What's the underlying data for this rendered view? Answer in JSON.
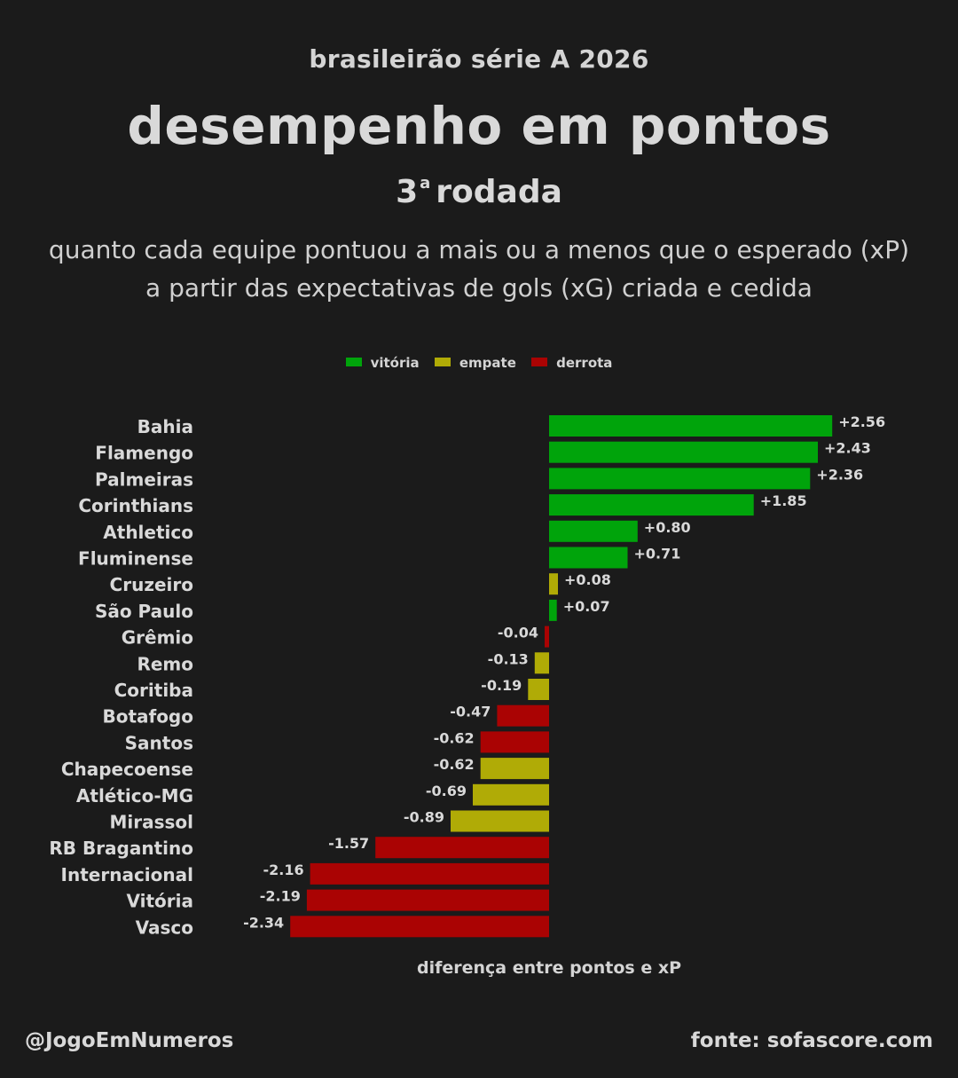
{
  "header": {
    "supertitle": "brasileirão série A 2026",
    "title": "desempenho em pontos",
    "round_number": "3",
    "round_suffix": "a",
    "round_word": "rodada",
    "subtitle_line1": "quanto cada equipe pontuou a mais ou a menos que o esperado (xP)",
    "subtitle_line2": "a partir das expectativas de gols (xG) criada e cedida"
  },
  "legend": [
    {
      "label": "vitória",
      "color": "#00a40b"
    },
    {
      "label": "empate",
      "color": "#b0ab06"
    },
    {
      "label": "derrota",
      "color": "#aa0303"
    }
  ],
  "colors": {
    "vitória": "#00a40b",
    "empate": "#b0ab06",
    "derrota": "#aa0303"
  },
  "chart_data": {
    "type": "bar",
    "orientation": "horizontal",
    "xlabel": "diferença entre pontos e xP",
    "xlim": [
      -2.45,
      2.8
    ],
    "grid": false,
    "legend_position": "top-center",
    "categories": [
      "Bahia",
      "Flamengo",
      "Palmeiras",
      "Corinthians",
      "Athletico",
      "Fluminense",
      "Cruzeiro",
      "São Paulo",
      "Grêmio",
      "Remo",
      "Coritiba",
      "Botafogo",
      "Santos",
      "Chapecoense",
      "Atlético-MG",
      "Mirassol",
      "RB Bragantino",
      "Internacional",
      "Vitória",
      "Vasco"
    ],
    "values": [
      2.56,
      2.43,
      2.36,
      1.85,
      0.8,
      0.71,
      0.08,
      0.07,
      -0.04,
      -0.13,
      -0.19,
      -0.47,
      -0.62,
      -0.62,
      -0.69,
      -0.89,
      -1.57,
      -2.16,
      -2.19,
      -2.34
    ],
    "value_labels": [
      "+2.56",
      "+2.43",
      "+2.36",
      "+1.85",
      "+0.80",
      "+0.71",
      "+0.08",
      "+0.07",
      "-0.04",
      "-0.13",
      "-0.19",
      "-0.47",
      "-0.62",
      "-0.62",
      "-0.69",
      "-0.89",
      "-1.57",
      "-2.16",
      "-2.19",
      "-2.34"
    ],
    "results": [
      "vitória",
      "vitória",
      "vitória",
      "vitória",
      "vitória",
      "vitória",
      "empate",
      "vitória",
      "derrota",
      "empate",
      "empate",
      "derrota",
      "derrota",
      "empate",
      "empate",
      "empate",
      "derrota",
      "derrota",
      "derrota",
      "derrota"
    ]
  },
  "footer": {
    "handle": "@JogoEmNumeros",
    "source": "fonte: sofascore.com"
  }
}
